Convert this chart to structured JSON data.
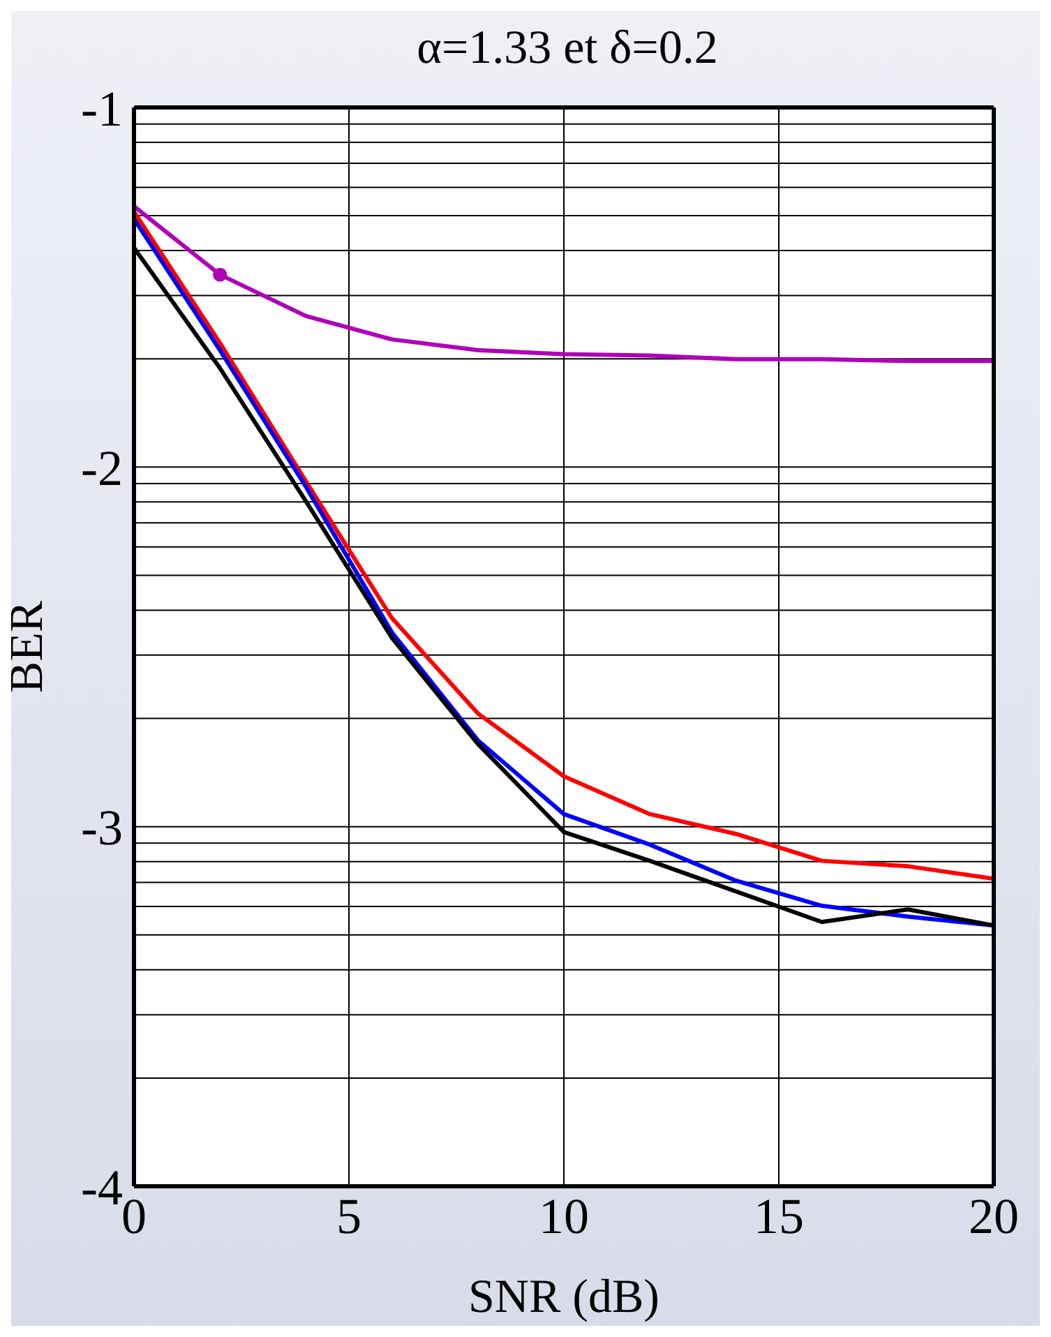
{
  "chart_data": {
    "type": "line",
    "title": "α=1.33 et δ=0.2",
    "xlabel": "SNR (dB)",
    "ylabel": "BER",
    "x": [
      0,
      2,
      4,
      6,
      8,
      10,
      12,
      14,
      16,
      18,
      20
    ],
    "series": [
      {
        "color": "#b000b8",
        "values": [
          -1.275,
          -1.465,
          -1.58,
          -1.645,
          -1.675,
          -1.686,
          -1.69,
          -1.7,
          -1.7,
          -1.705,
          -1.705
        ]
      },
      {
        "type": "scatter",
        "color": "#b000b8",
        "x": [
          2
        ],
        "values": [
          -1.465
        ]
      },
      {
        "color": "#ff0000",
        "values": [
          -1.29,
          -1.655,
          -2.04,
          -2.42,
          -2.685,
          -2.86,
          -2.965,
          -3.02,
          -3.095,
          -3.11,
          -3.145
        ]
      },
      {
        "color": "#0000ff",
        "values": [
          -1.31,
          -1.675,
          -2.055,
          -2.46,
          -2.76,
          -2.965,
          -3.05,
          -3.15,
          -3.22,
          -3.25,
          -3.275
        ]
      },
      {
        "color": "#000000",
        "values": [
          -1.39,
          -1.725,
          -2.095,
          -2.475,
          -2.77,
          -3.015,
          -3.095,
          -3.18,
          -3.265,
          -3.23,
          -3.275
        ]
      }
    ],
    "xlim": [
      0,
      20
    ],
    "xticks": [
      0,
      5,
      10,
      15,
      20
    ],
    "ylim": [
      -4,
      -1
    ],
    "yticks": [
      -4,
      {
        "value": -3.699,
        "label": null
      },
      {
        "value": -3.523,
        "label": null
      },
      {
        "value": -3.398,
        "label": null
      },
      {
        "value": -3.301,
        "label": null
      },
      {
        "value": -3.222,
        "label": null
      },
      {
        "value": -3.155,
        "label": null
      },
      {
        "value": -3.097,
        "label": null
      },
      {
        "value": -3.046,
        "label": null
      },
      -3,
      {
        "value": -2.699,
        "label": null
      },
      {
        "value": -2.523,
        "label": null
      },
      {
        "value": -2.398,
        "label": null
      },
      {
        "value": -2.301,
        "label": null
      },
      {
        "value": -2.222,
        "label": null
      },
      {
        "value": -2.155,
        "label": null
      },
      {
        "value": -2.097,
        "label": null
      },
      {
        "value": -2.046,
        "label": null
      },
      -2,
      {
        "value": -1.699,
        "label": null
      },
      {
        "value": -1.523,
        "label": null
      },
      {
        "value": -1.398,
        "label": null
      },
      {
        "value": -1.301,
        "label": null
      },
      {
        "value": -1.222,
        "label": null
      },
      {
        "value": -1.155,
        "label": null
      },
      {
        "value": -1.097,
        "label": null
      },
      {
        "value": -1.046,
        "label": null
      },
      -1
    ],
    "grid": true
  }
}
